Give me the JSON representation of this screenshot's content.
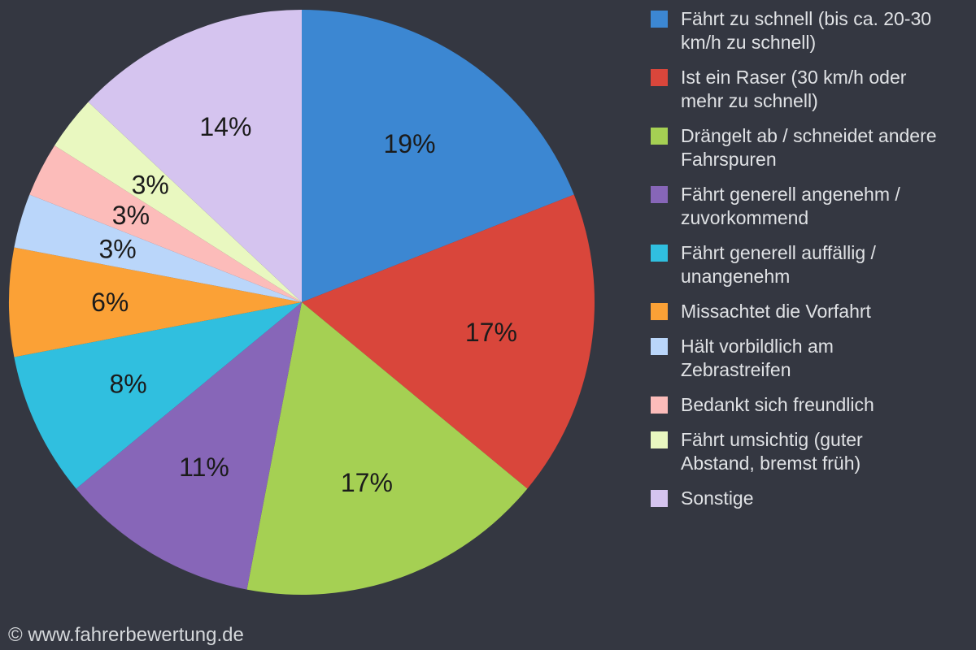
{
  "colors": {
    "background": "#343741",
    "legend_text": "#e0e2e5",
    "footer_text": "#d5d8db",
    "slice_label": "#1b1b1b"
  },
  "chart_data": {
    "type": "pie",
    "title": "",
    "legend_position": "right",
    "start_angle_deg": 0,
    "series": [
      {
        "label": "Fährt zu schnell (bis ca. 20-30\nkm/h zu schnell)",
        "value": 19,
        "percent_label": "19%",
        "color": "#3c87d2"
      },
      {
        "label": "Ist ein Raser (30 km/h oder\nmehr zu schnell)",
        "value": 17,
        "percent_label": "17%",
        "color": "#d9463b"
      },
      {
        "label": "Drängelt ab / schneidet andere\nFahrspuren",
        "value": 17,
        "percent_label": "17%",
        "color": "#a5d053"
      },
      {
        "label": "Fährt generell angenehm /\nzuvorkommend",
        "value": 11,
        "percent_label": "11%",
        "color": "#8766b8"
      },
      {
        "label": "Fährt generell auffällig /\nunangenehm",
        "value": 8,
        "percent_label": "8%",
        "color": "#30bfdf"
      },
      {
        "label": "Missachtet die Vorfahrt",
        "value": 6,
        "percent_label": "6%",
        "color": "#fba136"
      },
      {
        "label": "Hält vorbildlich am\nZebrastreifen",
        "value": 3,
        "percent_label": "3%",
        "color": "#bad6fa"
      },
      {
        "label": "Bedankt sich freundlich",
        "value": 3,
        "percent_label": "3%",
        "color": "#fcbcba"
      },
      {
        "label": "Fährt umsichtig (guter\nAbstand, bremst früh)",
        "value": 3,
        "percent_label": "3%",
        "color": "#e9f8c0"
      },
      {
        "label": "Sonstige",
        "value": 14,
        "percent_label": "14%",
        "color": "#d5c4ef"
      }
    ]
  },
  "footer": {
    "text": "© www.fahrerbewertung.de"
  }
}
